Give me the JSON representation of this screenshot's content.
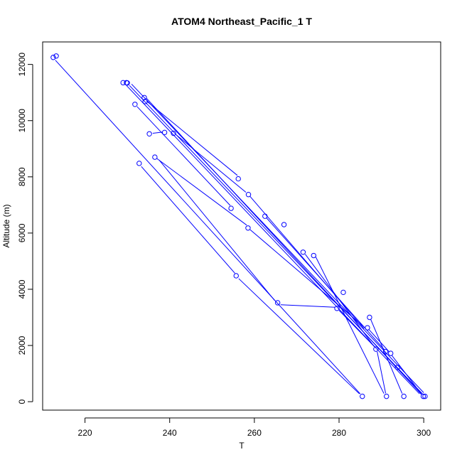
{
  "chart_data": {
    "type": "line",
    "title": "ATOM4 Northeast_Pacific_1 T",
    "xlabel": "T",
    "ylabel": "Altitude (m)",
    "xlim": [
      210,
      304
    ],
    "ylim": [
      -300,
      12800
    ],
    "xticks": [
      220,
      240,
      260,
      280,
      300
    ],
    "yticks": [
      0,
      2000,
      4000,
      6000,
      8000,
      10000,
      12000
    ],
    "grid": false,
    "color": "#0000ff",
    "series": [
      {
        "points": [
          {
            "x": 212.5,
            "y": 12250
          },
          {
            "x": 213.2,
            "y": 12300
          },
          {
            "x": 229.0,
            "y": 11350
          },
          {
            "x": 229.8,
            "y": 11350
          },
          {
            "x": 230.0,
            "y": 11340
          },
          {
            "x": 234.0,
            "y": 10820
          },
          {
            "x": 234.2,
            "y": 10680
          },
          {
            "x": 231.8,
            "y": 10580
          },
          {
            "x": 235.2,
            "y": 9530
          },
          {
            "x": 238.8,
            "y": 9580
          },
          {
            "x": 240.9,
            "y": 9550
          },
          {
            "x": 236.5,
            "y": 8700
          },
          {
            "x": 232.8,
            "y": 8480
          },
          {
            "x": 256.2,
            "y": 7930
          },
          {
            "x": 258.6,
            "y": 7370
          },
          {
            "x": 254.5,
            "y": 6880
          },
          {
            "x": 262.5,
            "y": 6600
          },
          {
            "x": 267.0,
            "y": 6300
          },
          {
            "x": 258.5,
            "y": 6180
          },
          {
            "x": 271.5,
            "y": 5320
          },
          {
            "x": 274.0,
            "y": 5200
          },
          {
            "x": 255.7,
            "y": 4480
          },
          {
            "x": 281.0,
            "y": 3890
          },
          {
            "x": 265.5,
            "y": 3520
          },
          {
            "x": 279.5,
            "y": 3320
          },
          {
            "x": 287.2,
            "y": 3000
          },
          {
            "x": 286.7,
            "y": 2630
          },
          {
            "x": 288.7,
            "y": 1870
          },
          {
            "x": 291.0,
            "y": 1780
          },
          {
            "x": 292.2,
            "y": 1720
          },
          {
            "x": 293.8,
            "y": 1220
          },
          {
            "x": 285.5,
            "y": 190
          },
          {
            "x": 291.2,
            "y": 190
          },
          {
            "x": 295.3,
            "y": 190
          },
          {
            "x": 299.9,
            "y": 190
          },
          {
            "x": 300.3,
            "y": 190
          }
        ],
        "segments": [
          [
            {
              "x": 213.0,
              "y": 12150
            },
            {
              "x": 285.0,
              "y": 280
            }
          ],
          [
            {
              "x": 229.8,
              "y": 11250
            },
            {
              "x": 299.0,
              "y": 280
            }
          ],
          [
            {
              "x": 230.5,
              "y": 11250
            },
            {
              "x": 299.5,
              "y": 300
            }
          ],
          [
            {
              "x": 231.0,
              "y": 11300
            },
            {
              "x": 300.0,
              "y": 320
            }
          ],
          [
            {
              "x": 234.5,
              "y": 10700
            },
            {
              "x": 256.0,
              "y": 8050
            }
          ],
          [
            {
              "x": 234.5,
              "y": 10800
            },
            {
              "x": 299.5,
              "y": 250
            }
          ],
          [
            {
              "x": 232.3,
              "y": 10500
            },
            {
              "x": 254.3,
              "y": 6980
            }
          ],
          [
            {
              "x": 236.0,
              "y": 9550
            },
            {
              "x": 238.3,
              "y": 9590
            }
          ],
          [
            {
              "x": 241.5,
              "y": 9500
            },
            {
              "x": 258.0,
              "y": 7450
            }
          ],
          [
            {
              "x": 237.0,
              "y": 8650
            },
            {
              "x": 258.2,
              "y": 6280
            }
          ],
          [
            {
              "x": 237.5,
              "y": 8600
            },
            {
              "x": 264.8,
              "y": 3600
            }
          ],
          [
            {
              "x": 233.3,
              "y": 8370
            },
            {
              "x": 255.4,
              "y": 4570
            }
          ],
          [
            {
              "x": 256.3,
              "y": 4380
            },
            {
              "x": 284.8,
              "y": 280
            }
          ],
          [
            {
              "x": 259.0,
              "y": 7300
            },
            {
              "x": 285.9,
              "y": 2600
            }
          ],
          [
            {
              "x": 262.8,
              "y": 6550
            },
            {
              "x": 290.7,
              "y": 1850
            }
          ],
          [
            {
              "x": 259.0,
              "y": 6120
            },
            {
              "x": 286.2,
              "y": 2620
            }
          ],
          [
            {
              "x": 266.2,
              "y": 3450
            },
            {
              "x": 279.0,
              "y": 3360
            }
          ],
          [
            {
              "x": 272.0,
              "y": 5250
            },
            {
              "x": 288.3,
              "y": 1960
            }
          ],
          [
            {
              "x": 274.5,
              "y": 5150
            },
            {
              "x": 290.6,
              "y": 290
            }
          ],
          [
            {
              "x": 280.0,
              "y": 3250
            },
            {
              "x": 288.4,
              "y": 1950
            }
          ],
          [
            {
              "x": 287.5,
              "y": 2920
            },
            {
              "x": 294.9,
              "y": 290
            }
          ],
          [
            {
              "x": 287.1,
              "y": 2560
            },
            {
              "x": 291.8,
              "y": 1780
            }
          ],
          [
            {
              "x": 289.0,
              "y": 1780
            },
            {
              "x": 291.0,
              "y": 300
            }
          ],
          [
            {
              "x": 292.5,
              "y": 1640
            },
            {
              "x": 299.4,
              "y": 280
            }
          ],
          [
            {
              "x": 294.1,
              "y": 1140
            },
            {
              "x": 299.7,
              "y": 280
            }
          ]
        ]
      }
    ]
  }
}
